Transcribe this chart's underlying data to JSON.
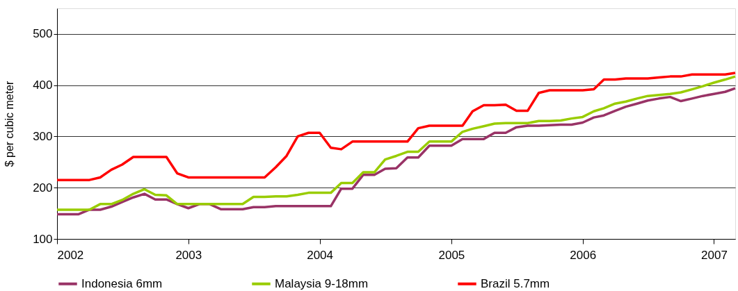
{
  "chart_data": {
    "type": "line",
    "ylabel": "$ per cubic meter",
    "x": [
      "2002-01",
      "2002-02",
      "2002-03",
      "2002-04",
      "2002-05",
      "2002-06",
      "2002-07",
      "2002-08",
      "2002-09",
      "2002-10",
      "2002-11",
      "2002-12",
      "2003-01",
      "2003-02",
      "2003-03",
      "2003-04",
      "2003-05",
      "2003-06",
      "2003-07",
      "2003-08",
      "2003-09",
      "2003-10",
      "2003-11",
      "2003-12",
      "2004-01",
      "2004-02",
      "2004-03",
      "2004-04",
      "2004-05",
      "2004-06",
      "2004-07",
      "2004-08",
      "2004-09",
      "2004-10",
      "2004-11",
      "2004-12",
      "2005-01",
      "2005-02",
      "2005-03",
      "2005-04",
      "2005-05",
      "2005-06",
      "2005-07",
      "2005-08",
      "2005-09",
      "2005-10",
      "2005-11",
      "2005-12",
      "2006-01",
      "2006-02",
      "2006-03",
      "2006-04",
      "2006-05",
      "2006-06",
      "2006-07",
      "2006-08",
      "2006-09",
      "2006-10",
      "2006-11",
      "2006-12",
      "2007-01",
      "2007-02",
      "2007-03"
    ],
    "series": [
      {
        "name": "Indonesia 6mm",
        "color": "#993366",
        "values": [
          148,
          148,
          148,
          157,
          157,
          163,
          172,
          181,
          188,
          177,
          177,
          168,
          160,
          168,
          168,
          158,
          158,
          158,
          162,
          162,
          164,
          164,
          164,
          164,
          164,
          164,
          198,
          198,
          225,
          225,
          237,
          238,
          259,
          259,
          282,
          282,
          282,
          295,
          295,
          295,
          307,
          307,
          318,
          321,
          321,
          322,
          323,
          323,
          327,
          337,
          341,
          350,
          358,
          364,
          370,
          374,
          377,
          369,
          374,
          379,
          383,
          387,
          394
        ]
      },
      {
        "name": "Malaysia 9-18mm",
        "color": "#99cc00",
        "values": [
          157,
          157,
          157,
          157,
          168,
          168,
          176,
          188,
          197,
          186,
          185,
          168,
          168,
          168,
          168,
          168,
          168,
          168,
          182,
          182,
          183,
          183,
          186,
          190,
          190,
          190,
          209,
          209,
          230,
          230,
          255,
          262,
          270,
          270,
          290,
          290,
          290,
          309,
          315,
          320,
          325,
          326,
          326,
          326,
          330,
          330,
          331,
          335,
          338,
          349,
          355,
          364,
          368,
          374,
          379,
          381,
          383,
          386,
          392,
          398,
          405,
          411,
          417
        ]
      },
      {
        "name": "Brazil 5.7mm",
        "color": "#ff0000",
        "values": [
          215,
          215,
          215,
          215,
          220,
          235,
          245,
          260,
          260,
          260,
          260,
          228,
          220,
          220,
          220,
          220,
          220,
          220,
          220,
          220,
          240,
          262,
          300,
          307,
          307,
          278,
          275,
          290,
          290,
          290,
          290,
          290,
          290,
          316,
          321,
          321,
          321,
          321,
          349,
          361,
          361,
          362,
          350,
          350,
          385,
          390,
          390,
          390,
          390,
          392,
          411,
          411,
          413,
          413,
          413,
          415,
          417,
          417,
          421,
          421,
          421,
          421,
          424
        ]
      }
    ],
    "xlim": [
      "2002-01",
      "2007-03"
    ],
    "xticks": [
      "2002",
      "2003",
      "2004",
      "2005",
      "2006",
      "2007"
    ],
    "ylim": [
      100,
      550
    ],
    "yticks": [
      100,
      200,
      300,
      400,
      500
    ],
    "grid": "y",
    "legend": "bottom",
    "marker": "none",
    "line_style": "solid"
  }
}
